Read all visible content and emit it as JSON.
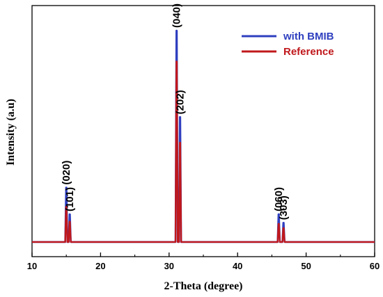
{
  "chart_data": {
    "type": "line",
    "title": "",
    "xlabel": "2-Theta (degree)",
    "ylabel": "Intensity (a.u)",
    "xlim": [
      10,
      60
    ],
    "xticks": [
      10,
      20,
      30,
      40,
      50,
      60
    ],
    "ylim": [
      0,
      1.0
    ],
    "yticks_shown": false,
    "grid": false,
    "legend_position": "top-right",
    "series": [
      {
        "name": "with BMIB",
        "color": "#2f3fbf",
        "baseline": 0.01,
        "peaks": [
          {
            "x": 15.0,
            "y": 0.265
          },
          {
            "x": 15.5,
            "y": 0.14
          },
          {
            "x": 31.1,
            "y": 1.0
          },
          {
            "x": 31.6,
            "y": 0.595
          },
          {
            "x": 46.0,
            "y": 0.14
          },
          {
            "x": 46.7,
            "y": 0.1
          }
        ]
      },
      {
        "name": "Reference",
        "color": "#c0181c",
        "baseline": 0.01,
        "peaks": [
          {
            "x": 15.0,
            "y": 0.175
          },
          {
            "x": 15.5,
            "y": 0.105
          },
          {
            "x": 31.1,
            "y": 0.855
          },
          {
            "x": 31.6,
            "y": 0.475
          },
          {
            "x": 46.0,
            "y": 0.095
          },
          {
            "x": 46.7,
            "y": 0.075
          }
        ]
      }
    ],
    "annotations": [
      {
        "text": "(020)",
        "x": 15.0,
        "y": 0.265
      },
      {
        "text": "(101)",
        "x": 15.5,
        "y": 0.14
      },
      {
        "text": "(040)",
        "x": 31.1,
        "y": 1.0
      },
      {
        "text": "(202)",
        "x": 31.6,
        "y": 0.595
      },
      {
        "text": "(060)",
        "x": 46.0,
        "y": 0.14
      },
      {
        "text": "(303)",
        "x": 46.7,
        "y": 0.1
      }
    ]
  }
}
